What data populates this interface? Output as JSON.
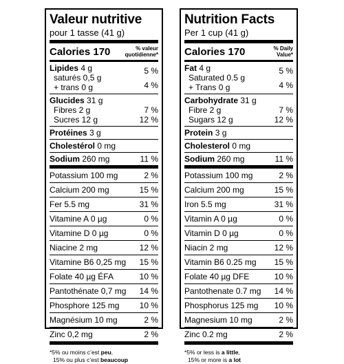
{
  "fr": {
    "title": "Valeur nutritive",
    "serving": "pour 1 tasse (41 g)",
    "calories": "Calories 170",
    "dv_header": [
      "% valeur",
      "quotidienne*"
    ],
    "fat": {
      "label": "Lipides",
      "amount": "4 g",
      "pct": "5 %"
    },
    "sat": "saturés 0,5 g",
    "trans": "+ trans 0 g",
    "sat_trans_pct": "4 %",
    "carb": {
      "label": "Glucides",
      "amount": "31 g"
    },
    "fibre": {
      "label": "Fibres 2 g",
      "pct": "7 %"
    },
    "sugars": {
      "label": "Sucres 12 g",
      "pct": "12 %"
    },
    "protein": {
      "label": "Protéines",
      "amount": "3 g"
    },
    "cholesterol": {
      "label": "Cholestérol",
      "amount": "0 mg"
    },
    "sodium": {
      "label": "Sodium",
      "amount": "260 mg",
      "pct": "11 %"
    },
    "minerals": [
      {
        "label": "Potassium 100 mg",
        "pct": "2 %"
      },
      {
        "label": "Calcium 200 mg",
        "pct": "15 %"
      },
      {
        "label": "Fer 5.5 mg",
        "pct": "31 %"
      },
      {
        "label": "Vitamine A 0 µg",
        "pct": "0 %"
      },
      {
        "label": "Vitamine D 0 µg",
        "pct": "0 %"
      },
      {
        "label": "Niacine 2 mg",
        "pct": "12 %"
      },
      {
        "label": "Vitamine B6 0,25 mg",
        "pct": "15 %"
      },
      {
        "label": "Folate 40 µg ÉFA",
        "pct": "10 %"
      },
      {
        "label": "Pantothénate 0,7 mg",
        "pct": "14 %"
      },
      {
        "label": "Phosphore 125 mg",
        "pct": "10 %"
      },
      {
        "label": "Magnésium 10 mg",
        "pct": "2 %"
      },
      {
        "label": "Zinc 0,2 mg",
        "pct": "2 %"
      }
    ],
    "foot1_a": "*5% ou moins c’est ",
    "foot1_b": "peu",
    "foot1_c": ",",
    "foot2_a": "15% ou plus c’est ",
    "foot2_b": "beaucoup"
  },
  "en": {
    "title": "Nutrition Facts",
    "serving": "Per 1 cup (41 g)",
    "calories": "Calories 170",
    "dv_header": [
      "% Daily",
      "Value*"
    ],
    "fat": {
      "label": "Fat",
      "amount": "4 g",
      "pct": "5 %"
    },
    "sat": "Saturated 0.5 g",
    "trans": "+ Trans 0 g",
    "sat_trans_pct": "4 %",
    "carb": {
      "label": "Carbohydrate",
      "amount": "31 g"
    },
    "fibre": {
      "label": "Fibre 2 g",
      "pct": "7 %"
    },
    "sugars": {
      "label": "Sugars 12 g",
      "pct": "12 %"
    },
    "protein": {
      "label": "Protein",
      "amount": "3 g"
    },
    "cholesterol": {
      "label": "Cholesterol",
      "amount": "0 mg"
    },
    "sodium": {
      "label": "Sodium",
      "amount": "260 mg",
      "pct": "11 %"
    },
    "minerals": [
      {
        "label": "Potassium 100 mg",
        "pct": "2 %"
      },
      {
        "label": "Calcium 200 mg",
        "pct": "15 %"
      },
      {
        "label": "Iron 5.5 mg",
        "pct": "31 %"
      },
      {
        "label": "Vitamin A 0 µg",
        "pct": "0 %"
      },
      {
        "label": "Vitamin D 0 µg",
        "pct": "0 %"
      },
      {
        "label": "Niacin 2 mg",
        "pct": "12 %"
      },
      {
        "label": "Vitamin B6 0.25 mg",
        "pct": "15 %"
      },
      {
        "label": "Folate 40 µg DFE",
        "pct": "10 %"
      },
      {
        "label": "Pantothenate 0.7 mg",
        "pct": "14 %"
      },
      {
        "label": "Phosphorus 125 mg",
        "pct": "10 %"
      },
      {
        "label": "Magnesium 10 mg",
        "pct": "2 %"
      },
      {
        "label": "Zinc 0.2 mg",
        "pct": "2 %"
      }
    ],
    "foot1_a": "*5% or less is ",
    "foot1_b": "a little",
    "foot1_c": ",",
    "foot2_a": "15% or more is ",
    "foot2_b": "a lot"
  }
}
